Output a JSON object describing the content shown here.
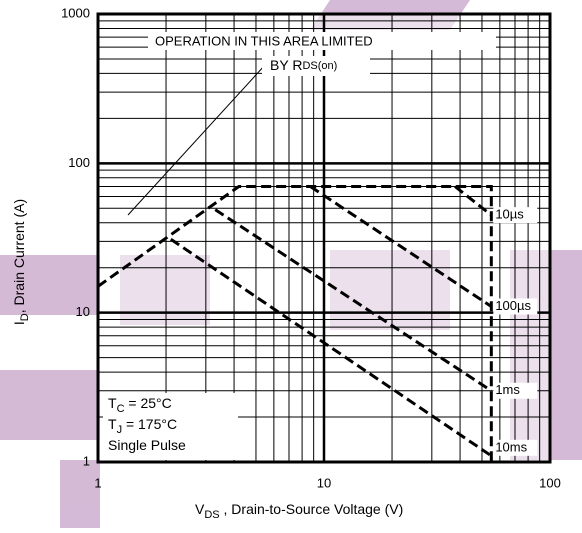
{
  "chart_data": {
    "type": "line",
    "log_x": true,
    "log_y": true,
    "xlim": [
      1,
      100
    ],
    "ylim": [
      1,
      1000
    ],
    "xticks": [
      1,
      10,
      100
    ],
    "yticks": [
      1,
      10,
      100,
      1000
    ],
    "grid": true,
    "minor_grid": true,
    "xlabel": {
      "main": "V",
      "sub": "DS",
      "rest": " , Drain-to-Source Voltage (V)"
    },
    "ylabel": {
      "main": "I",
      "sub": "D",
      "rest": ", Drain Current (A)"
    },
    "annotation": {
      "line1": "OPERATION IN THIS AREA LIMITED",
      "line2": "BY R",
      "line2_sub": "DS(on)"
    },
    "conditions": [
      {
        "main": "T",
        "sub": "C",
        "rest": "  = 25°C"
      },
      {
        "main": "T",
        "sub": "J",
        "rest": "  = 175°C"
      },
      {
        "main": "Single Pulse",
        "sub": "",
        "rest": ""
      }
    ],
    "color": "#000000",
    "series": [
      {
        "x": [
          1,
          4.2,
          55,
          55
        ],
        "values": [
          15,
          70,
          70,
          1
        ]
      },
      {
        "name": "10µs",
        "x": [
          38,
          55
        ],
        "values": [
          70,
          45
        ]
      },
      {
        "name": "100µs",
        "x": [
          8.7,
          55
        ],
        "values": [
          70,
          11
        ]
      },
      {
        "name": "1ms",
        "x": [
          3.3,
          55
        ],
        "values": [
          49,
          3
        ]
      },
      {
        "name": "10ms",
        "x": [
          2.1,
          55
        ],
        "values": [
          31,
          1.1
        ]
      }
    ]
  }
}
